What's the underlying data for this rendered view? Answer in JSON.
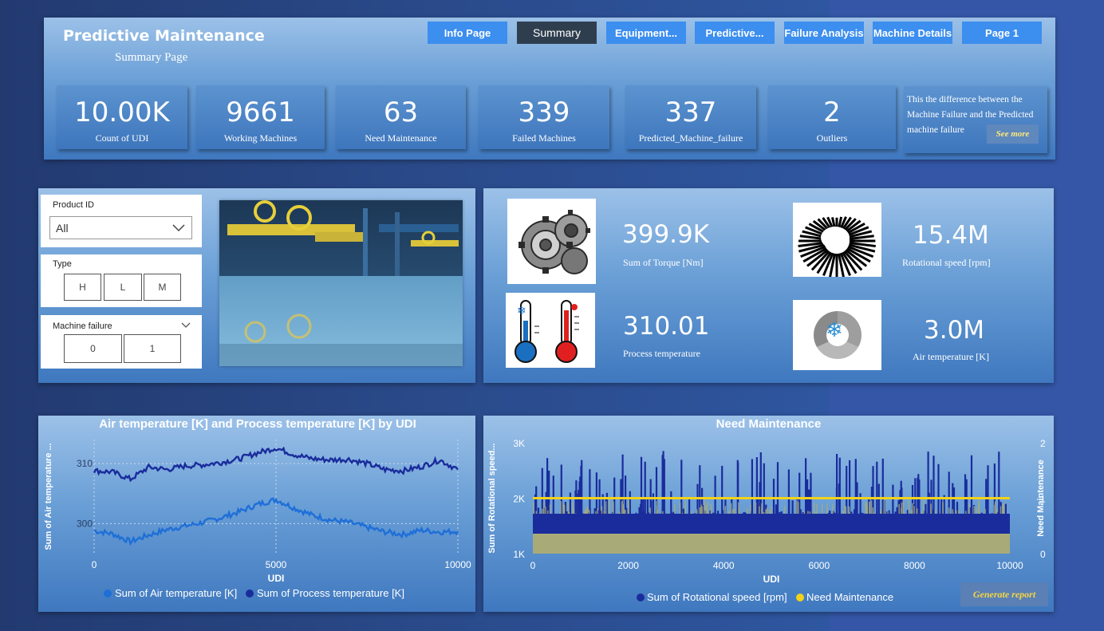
{
  "header": {
    "title": "Predictive Maintenance",
    "subtitle": "Summary Page"
  },
  "nav": {
    "items": [
      {
        "label": "Info Page"
      },
      {
        "label": "Summary"
      },
      {
        "label": "Equipment..."
      },
      {
        "label": "Predictive..."
      },
      {
        "label": "Failure Analysis"
      },
      {
        "label": "Machine Details"
      },
      {
        "label": "Page 1"
      }
    ]
  },
  "kpis": [
    {
      "value": "10.00K",
      "label": "Count of UDI"
    },
    {
      "value": "9661",
      "label": "Working Machines"
    },
    {
      "value": "63",
      "label": "Need Maintenance"
    },
    {
      "value": "339",
      "label": "Failed Machines"
    },
    {
      "value": "337",
      "label": "Predicted_Machine_failure"
    },
    {
      "value": "2",
      "label": "Outliers"
    }
  ],
  "note": {
    "text": "This the difference between the Machine Failure and the Predicted machine failure",
    "see_more": "See more"
  },
  "slicers": {
    "product_id": {
      "title": "Product ID",
      "value": "All"
    },
    "type": {
      "title": "Type",
      "options": [
        "H",
        "L",
        "M"
      ]
    },
    "machine_failure": {
      "title": "Machine failure",
      "options": [
        "0",
        "1"
      ]
    }
  },
  "metrics": [
    {
      "value": "399.9K",
      "label": "Sum of Torque [Nm]",
      "icon": "gear-icon"
    },
    {
      "value": "15.4M",
      "label": "Rotational speed [rpm]",
      "icon": "turbine-icon"
    },
    {
      "value": "310.01",
      "label": "Process temperature",
      "icon": "thermometer-icon"
    },
    {
      "value": "3.0M",
      "label": "Air temperature [K]",
      "icon": "cooling-fan-icon"
    }
  ],
  "chart_data": [
    {
      "type": "line",
      "title": "Air temperature [K] and Process temperature [K] by UDI",
      "xlabel": "UDI",
      "ylabel": "Sum of Air temperature ...",
      "xlim": [
        0,
        10000
      ],
      "ylim": [
        295,
        314
      ],
      "xticks": [
        "0",
        "5000",
        "10000"
      ],
      "yticks": [
        "300",
        "310"
      ],
      "legend_position": "bottom",
      "series": [
        {
          "name": "Sum of Air temperature [K]",
          "color": "#1e6fd8",
          "x": [
            0,
            500,
            1000,
            1500,
            2000,
            2500,
            3000,
            3500,
            4000,
            4500,
            5000,
            5500,
            6000,
            6500,
            7000,
            7500,
            8000,
            8500,
            9000,
            9500,
            10000
          ],
          "values": [
            298.8,
            298.3,
            297.0,
            298.1,
            299.0,
            299.6,
            300.2,
            301.0,
            302.0,
            303.2,
            304.0,
            302.6,
            301.4,
            300.6,
            300.2,
            299.4,
            298.6,
            298.2,
            298.9,
            298.6,
            298.7
          ]
        },
        {
          "name": "Sum of Process temperature [K]",
          "color": "#1a2c9c",
          "x": [
            0,
            500,
            1000,
            1500,
            2000,
            2500,
            3000,
            3500,
            4000,
            4500,
            5000,
            5500,
            6000,
            6500,
            7000,
            7500,
            8000,
            8500,
            9000,
            9500,
            10000
          ],
          "values": [
            308.8,
            308.6,
            307.4,
            309.4,
            309.0,
            309.6,
            309.8,
            310.2,
            310.8,
            311.8,
            312.6,
            311.5,
            310.8,
            310.6,
            310.7,
            310.0,
            309.0,
            308.8,
            309.5,
            310.6,
            309.0
          ]
        }
      ]
    },
    {
      "type": "line",
      "title": "Need Maintenance",
      "xlabel": "UDI",
      "ylabel": "Sum of Rotational speed...",
      "y2label": "Need Maintenance",
      "xlim": [
        0,
        10000
      ],
      "ylim": [
        1000,
        3000
      ],
      "y2lim": [
        0,
        2
      ],
      "xticks": [
        "0",
        "2000",
        "4000",
        "6000",
        "8000",
        "10000"
      ],
      "yticks": [
        "1K",
        "2K",
        "3K"
      ],
      "y2ticks": [
        "0",
        "1",
        "2"
      ],
      "legend_position": "bottom",
      "series": [
        {
          "name": "Sum of Rotational speed [rpm]",
          "color": "#1a2c9c",
          "baseline": 1540,
          "band": [
            1360,
            1720
          ],
          "peak_max": 2880
        },
        {
          "name": "Need Maintenance",
          "color": "#f2d21b",
          "value": 1
        }
      ]
    }
  ],
  "report_button": {
    "label": "Generate report"
  }
}
